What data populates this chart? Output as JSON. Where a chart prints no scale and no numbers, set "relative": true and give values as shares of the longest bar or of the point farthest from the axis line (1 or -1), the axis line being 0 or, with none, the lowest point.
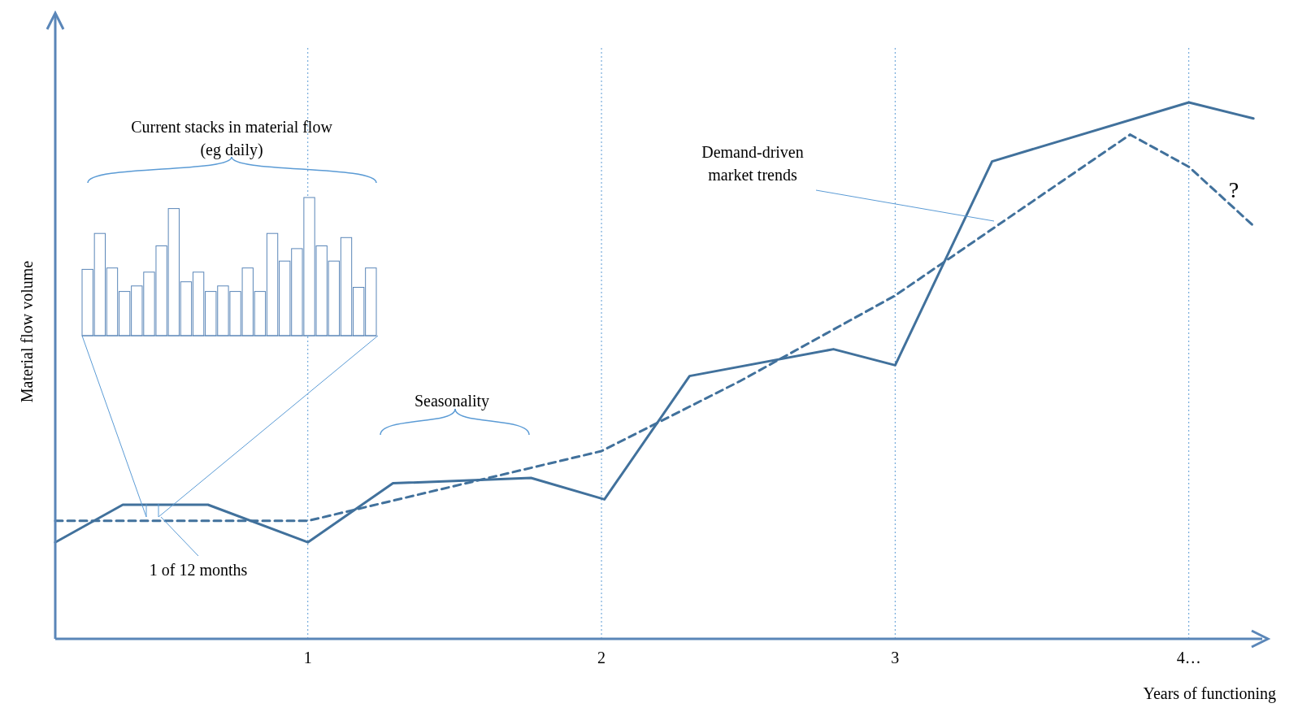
{
  "chart_data": [
    {
      "type": "line",
      "xlabel": "Years of functioning",
      "ylabel": "Material flow volume",
      "relative": true,
      "xlim": [
        0.14,
        4.25
      ],
      "xticks": [
        1,
        2,
        3,
        {
          "value": 4,
          "label": "4…"
        }
      ],
      "grid": false,
      "legend": false,
      "series": [
        {
          "color": "#41719c",
          "line_style": "solid",
          "x": [
            0.14,
            0.37,
            0.66,
            1.0,
            1.29,
            1.76,
            2.01,
            2.3,
            2.79,
            3.0,
            3.33,
            4.0,
            4.22
          ],
          "values": [
            0.18,
            0.25,
            0.25,
            0.18,
            0.29,
            0.3,
            0.26,
            0.49,
            0.54,
            0.51,
            0.89,
            1,
            0.97
          ]
        },
        {
          "color": "#41719c",
          "line_style": "dashed",
          "x": [
            0.14,
            1.0,
            2.0,
            2.47,
            3.0,
            3.8,
            4.0,
            4.22
          ],
          "values": [
            0.22,
            0.22,
            0.35,
            0.48,
            0.64,
            0.94,
            0.88,
            0.77
          ]
        }
      ],
      "ref_lines": [
        {
          "axis": "x",
          "value": 1,
          "color": "#5b9bd5",
          "line_style": "dotted"
        },
        {
          "axis": "x",
          "value": 2,
          "color": "#5b9bd5",
          "line_style": "dotted"
        },
        {
          "axis": "x",
          "value": 3,
          "color": "#5b9bd5",
          "line_style": "dotted"
        },
        {
          "axis": "x",
          "value": 4,
          "color": "#5b9bd5",
          "line_style": "dotted"
        }
      ],
      "annotations": [
        "Seasonality",
        "Demand-driven market trends",
        "1 of 12 months",
        "?"
      ]
    },
    {
      "type": "bar",
      "title": "Current stacks in material flow (eg daily)",
      "relative": true,
      "color": "#ffffff",
      "categories": [
        null,
        null,
        null,
        null,
        null,
        null,
        null,
        null,
        null,
        null,
        null,
        null,
        null,
        null,
        null,
        null,
        null,
        null,
        null,
        null,
        null,
        null,
        null,
        null
      ],
      "values": [
        0.48,
        0.74,
        0.49,
        0.32,
        0.36,
        0.46,
        0.65,
        0.92,
        0.39,
        0.46,
        0.32,
        0.36,
        0.32,
        0.49,
        0.32,
        0.74,
        0.54,
        0.63,
        1,
        0.65,
        0.54,
        0.71,
        0.35,
        0.49
      ]
    }
  ]
}
